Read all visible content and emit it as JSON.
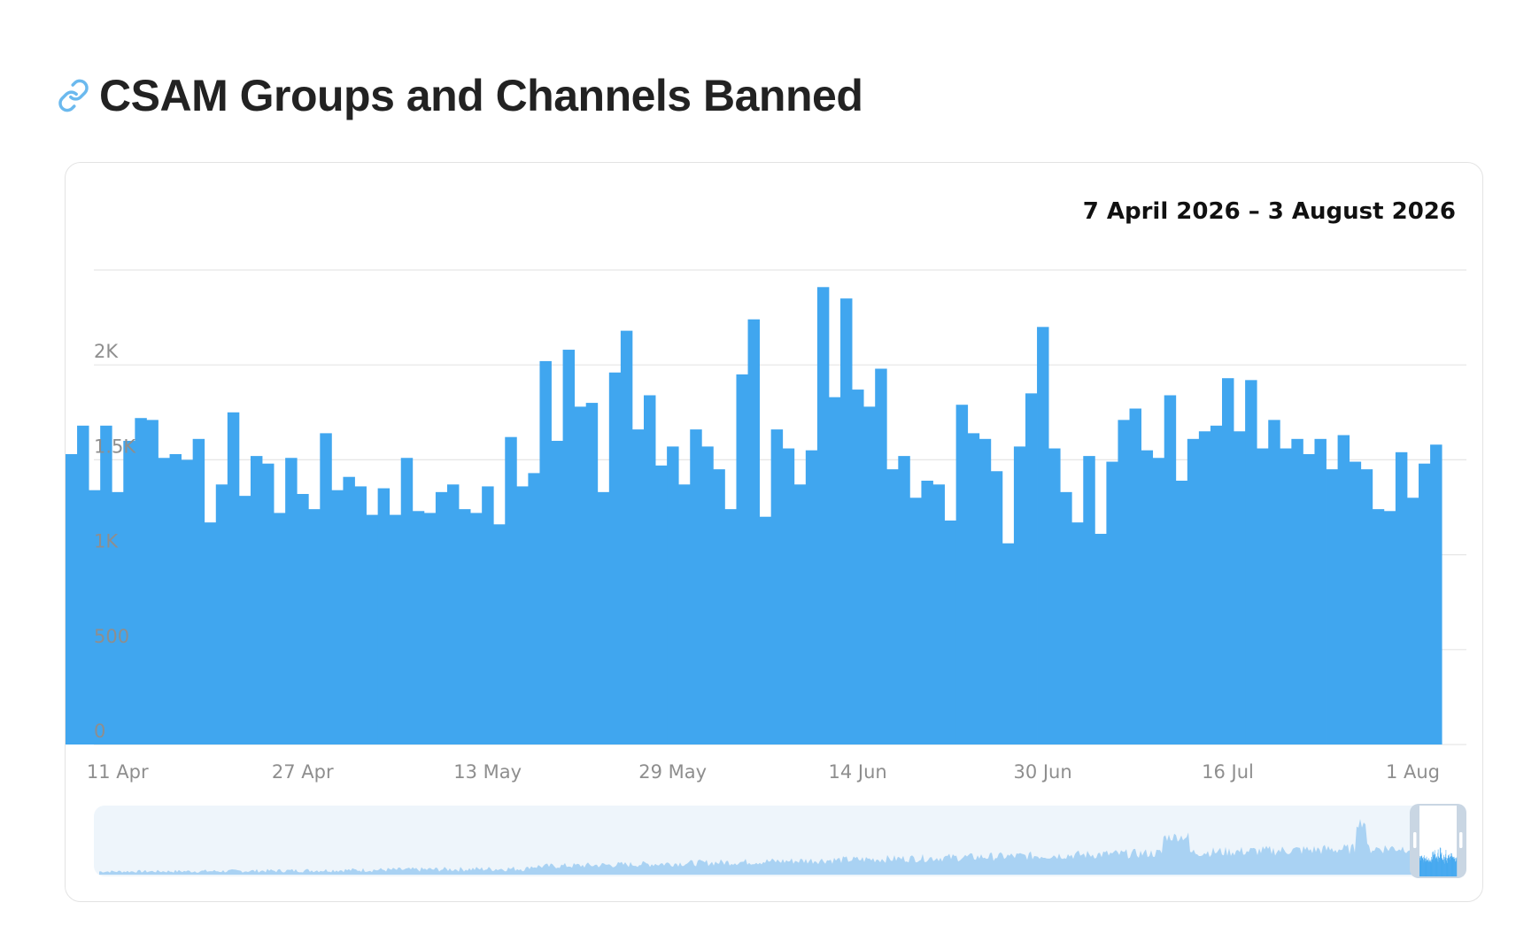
{
  "header": {
    "title": "CSAM Groups and Channels Banned",
    "link_icon": "link-icon"
  },
  "card": {
    "range_label": "7 April 2026 – 3 August 2026"
  },
  "colors": {
    "bar": "#40a6ef",
    "grid": "#e6e6e6",
    "navigator_bg": "#eef5fb",
    "navigator_area": "#a9d2f3",
    "navigator_handle": "#c9d6e3",
    "link_icon": "#6bb9ee"
  },
  "chart_data": {
    "type": "bar",
    "title": "CSAM Groups and Channels Banned",
    "xlabel": "",
    "ylabel": "",
    "ylim": [
      0,
      2500
    ],
    "grid": true,
    "y_ticks": [
      {
        "value": 0,
        "label": "0"
      },
      {
        "value": 500,
        "label": "500"
      },
      {
        "value": 1000,
        "label": "1K"
      },
      {
        "value": 1500,
        "label": "1.5K"
      },
      {
        "value": 2000,
        "label": "2K"
      }
    ],
    "x_ticks": [
      {
        "index": 4,
        "label": "11 Apr"
      },
      {
        "index": 20,
        "label": "27 Apr"
      },
      {
        "index": 36,
        "label": "13 May"
      },
      {
        "index": 52,
        "label": "29 May"
      },
      {
        "index": 68,
        "label": "14 Jun"
      },
      {
        "index": 84,
        "label": "30 Jun"
      },
      {
        "index": 100,
        "label": "16 Jul"
      },
      {
        "index": 116,
        "label": "1 Aug"
      }
    ],
    "start_date": "7 April 2026",
    "end_date": "3 August 2026",
    "values": [
      1530,
      1680,
      1340,
      1680,
      1330,
      1600,
      1720,
      1710,
      1510,
      1530,
      1500,
      1610,
      1170,
      1370,
      1750,
      1310,
      1520,
      1480,
      1220,
      1510,
      1320,
      1240,
      1640,
      1340,
      1410,
      1360,
      1210,
      1350,
      1210,
      1510,
      1230,
      1220,
      1330,
      1370,
      1240,
      1220,
      1360,
      1160,
      1620,
      1360,
      1430,
      2020,
      1600,
      2080,
      1780,
      1800,
      1330,
      1960,
      2180,
      1660,
      1840,
      1470,
      1570,
      1370,
      1660,
      1570,
      1450,
      1240,
      1950,
      2240,
      1200,
      1660,
      1560,
      1370,
      1550,
      2410,
      1830,
      2350,
      1870,
      1780,
      1980,
      1450,
      1520,
      1300,
      1390,
      1370,
      1180,
      1790,
      1640,
      1610,
      1440,
      1060,
      1570,
      1850,
      2200,
      1560,
      1330,
      1170,
      1520,
      1110,
      1490,
      1710,
      1770,
      1550,
      1510,
      1840,
      1390,
      1610,
      1650,
      1680,
      1930,
      1650,
      1920,
      1560,
      1710,
      1560,
      1610,
      1530,
      1610,
      1450,
      1630,
      1490,
      1450,
      1240,
      1230,
      1540,
      1300,
      1480,
      1580
    ]
  }
}
